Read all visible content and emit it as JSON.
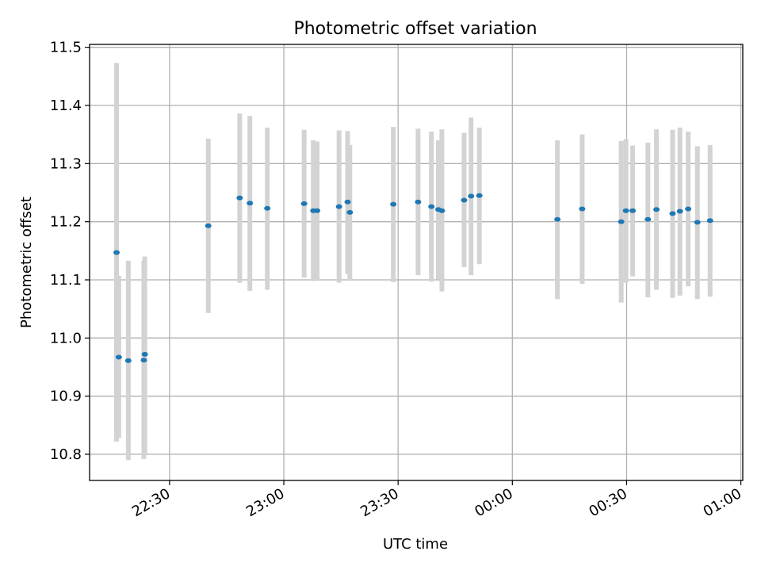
{
  "chart_data": {
    "type": "scatter",
    "title": "Photometric offset variation",
    "xlabel": "UTC time",
    "ylabel": "Photometric offset",
    "x_is_time": true,
    "xlim": [
      "22:09",
      "01:00:30"
    ],
    "ylim": [
      10.755,
      11.505
    ],
    "x_ticks": [
      "22:30",
      "23:00",
      "23:30",
      "00:00",
      "00:30",
      "01:00"
    ],
    "y_ticks": [
      "10.8",
      "10.9",
      "11.0",
      "11.1",
      "11.2",
      "11.3",
      "11.4",
      "11.5"
    ],
    "grid": true,
    "colors": {
      "point": "#1f77b4",
      "errorbar": "#d3d3d3",
      "grid": "#b0b0b0"
    },
    "points": [
      {
        "x": "22:16:05",
        "y": 11.147,
        "err_low": 10.822,
        "err_high": 11.473
      },
      {
        "x": "22:16:40",
        "y": 10.967,
        "err_low": 10.828,
        "err_high": 11.107
      },
      {
        "x": "22:19:10",
        "y": 10.961,
        "err_low": 10.79,
        "err_high": 11.133
      },
      {
        "x": "22:23:15",
        "y": 10.962,
        "err_low": 10.792,
        "err_high": 11.133
      },
      {
        "x": "22:23:30",
        "y": 10.972,
        "err_low": 10.8,
        "err_high": 11.14
      },
      {
        "x": "22:40:10",
        "y": 11.193,
        "err_low": 11.043,
        "err_high": 11.343
      },
      {
        "x": "22:48:25",
        "y": 11.241,
        "err_low": 11.095,
        "err_high": 11.386
      },
      {
        "x": "22:51:05",
        "y": 11.232,
        "err_low": 11.081,
        "err_high": 11.382
      },
      {
        "x": "22:55:40",
        "y": 11.223,
        "err_low": 11.083,
        "err_high": 11.362
      },
      {
        "x": "23:05:20",
        "y": 11.231,
        "err_low": 11.104,
        "err_high": 11.358
      },
      {
        "x": "23:07:45",
        "y": 11.219,
        "err_low": 11.098,
        "err_high": 11.34
      },
      {
        "x": "23:08:45",
        "y": 11.219,
        "err_low": 11.1,
        "err_high": 11.338
      },
      {
        "x": "23:14:30",
        "y": 11.226,
        "err_low": 11.095,
        "err_high": 11.357
      },
      {
        "x": "23:16:45",
        "y": 11.234,
        "err_low": 11.11,
        "err_high": 11.356
      },
      {
        "x": "23:17:20",
        "y": 11.216,
        "err_low": 11.1,
        "err_high": 11.332
      },
      {
        "x": "23:28:45",
        "y": 11.23,
        "err_low": 11.096,
        "err_high": 11.363
      },
      {
        "x": "23:35:15",
        "y": 11.234,
        "err_low": 11.108,
        "err_high": 11.36
      },
      {
        "x": "23:38:45",
        "y": 11.226,
        "err_low": 11.097,
        "err_high": 11.355
      },
      {
        "x": "23:40:35",
        "y": 11.221,
        "err_low": 11.101,
        "err_high": 11.34
      },
      {
        "x": "23:41:30",
        "y": 11.219,
        "err_low": 11.08,
        "err_high": 11.359
      },
      {
        "x": "23:47:20",
        "y": 11.237,
        "err_low": 11.122,
        "err_high": 11.353
      },
      {
        "x": "23:49:10",
        "y": 11.244,
        "err_low": 11.108,
        "err_high": 11.379
      },
      {
        "x": "23:51:20",
        "y": 11.245,
        "err_low": 11.127,
        "err_high": 11.362
      },
      {
        "x": "00:11:50",
        "y": 11.204,
        "err_low": 11.067,
        "err_high": 11.34
      },
      {
        "x": "00:18:20",
        "y": 11.222,
        "err_low": 11.093,
        "err_high": 11.35
      },
      {
        "x": "00:28:35",
        "y": 11.2,
        "err_low": 11.061,
        "err_high": 11.339
      },
      {
        "x": "00:29:50",
        "y": 11.219,
        "err_low": 11.095,
        "err_high": 11.342
      },
      {
        "x": "00:31:35",
        "y": 11.219,
        "err_low": 11.106,
        "err_high": 11.331
      },
      {
        "x": "00:35:35",
        "y": 11.204,
        "err_low": 11.07,
        "err_high": 11.336
      },
      {
        "x": "00:37:50",
        "y": 11.221,
        "err_low": 11.083,
        "err_high": 11.359
      },
      {
        "x": "00:42:05",
        "y": 11.214,
        "err_low": 11.069,
        "err_high": 11.358
      },
      {
        "x": "00:44:00",
        "y": 11.218,
        "err_low": 11.073,
        "err_high": 11.362
      },
      {
        "x": "00:46:10",
        "y": 11.222,
        "err_low": 11.089,
        "err_high": 11.355
      },
      {
        "x": "00:48:35",
        "y": 11.199,
        "err_low": 11.067,
        "err_high": 11.33
      },
      {
        "x": "00:51:55",
        "y": 11.202,
        "err_low": 11.071,
        "err_high": 11.332
      }
    ]
  }
}
